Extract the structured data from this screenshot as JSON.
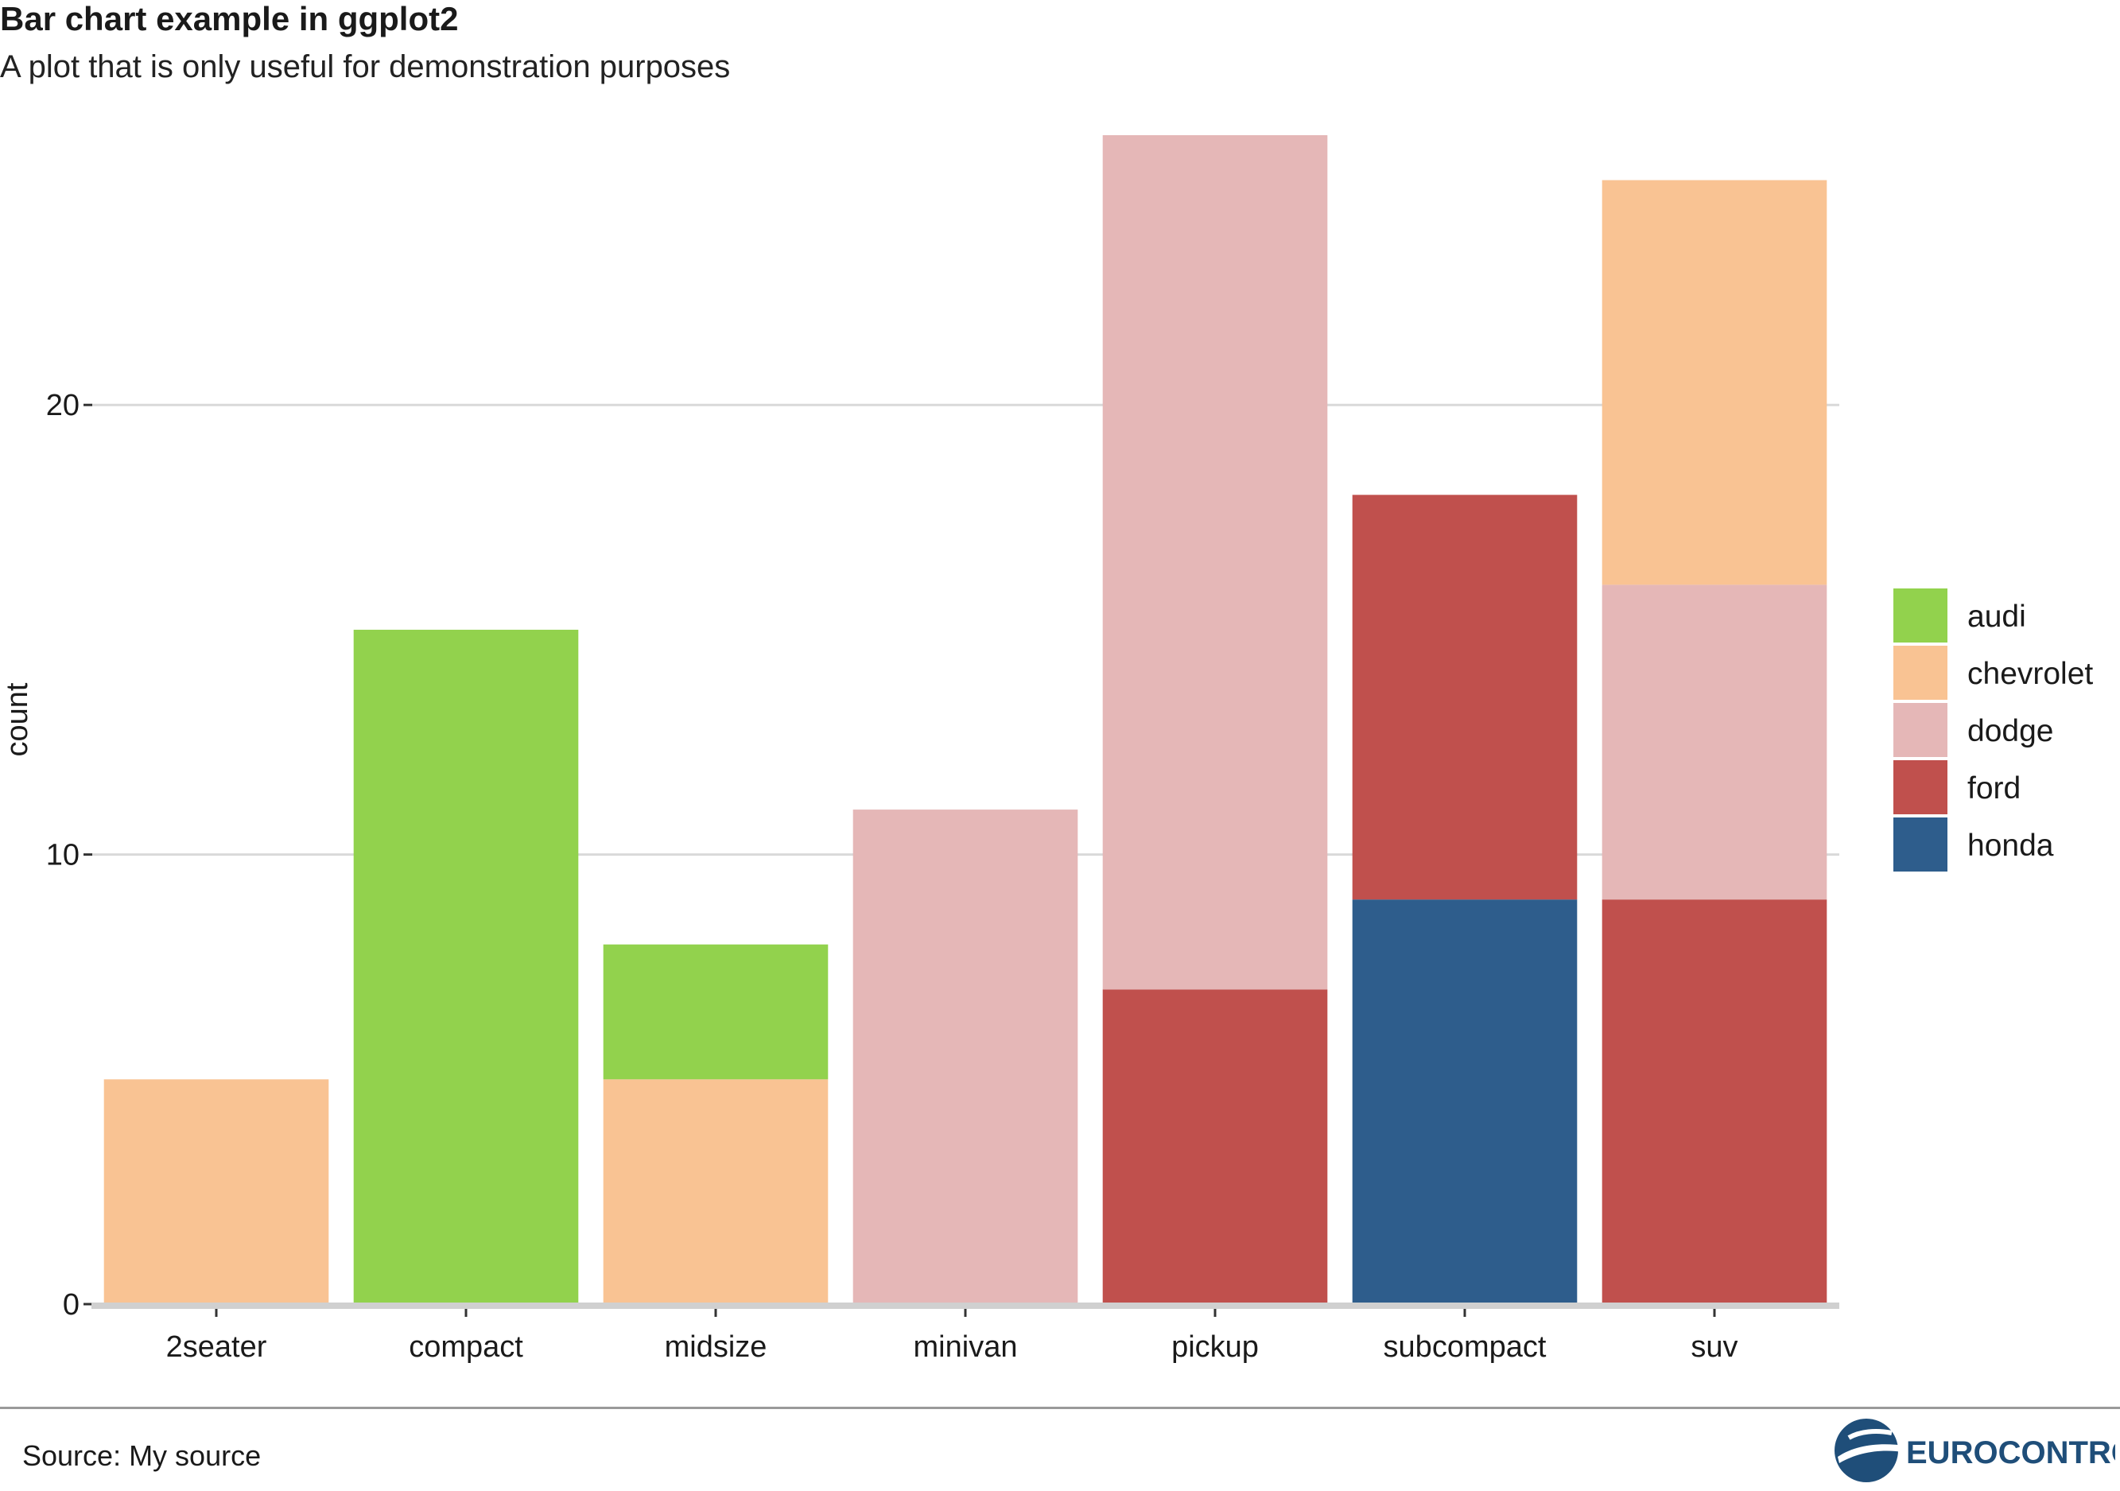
{
  "chart_title": "Bar chart example in ggplot2",
  "chart_subtitle": "A plot that is only useful for demonstration purposes",
  "footer": {
    "source": "Source: My source"
  },
  "brand": {
    "logo_name": "EUROCONTROL",
    "logo_color": "#1f4e79"
  },
  "chart_data": {
    "type": "bar",
    "stacked": true,
    "title": "Bar chart example in ggplot2",
    "subtitle": "A plot that is only useful for demonstration purposes",
    "xlabel": "",
    "ylabel": "count",
    "ylim": [
      0,
      26
    ],
    "yticks": [
      0,
      10,
      20
    ],
    "grid": "horizontal major",
    "legend_position": "right",
    "categories": [
      "2seater",
      "compact",
      "midsize",
      "minivan",
      "pickup",
      "subcompact",
      "suv"
    ],
    "series": [
      {
        "name": "audi",
        "color": "#92d24d",
        "values": [
          0,
          15,
          3,
          0,
          0,
          0,
          0
        ]
      },
      {
        "name": "chevrolet",
        "color": "#f9c393",
        "values": [
          5,
          0,
          5,
          0,
          0,
          0,
          9
        ]
      },
      {
        "name": "dodge",
        "color": "#e5b7b7",
        "values": [
          0,
          0,
          0,
          11,
          19,
          0,
          7
        ]
      },
      {
        "name": "ford",
        "color": "#c0504d",
        "values": [
          0,
          0,
          0,
          0,
          7,
          9,
          9
        ]
      },
      {
        "name": "honda",
        "color": "#2e5d8c",
        "values": [
          0,
          0,
          0,
          0,
          0,
          9,
          0
        ]
      }
    ],
    "stack_order_bottom_to_top": [
      "honda",
      "ford",
      "dodge",
      "chevrolet",
      "audi"
    ]
  }
}
